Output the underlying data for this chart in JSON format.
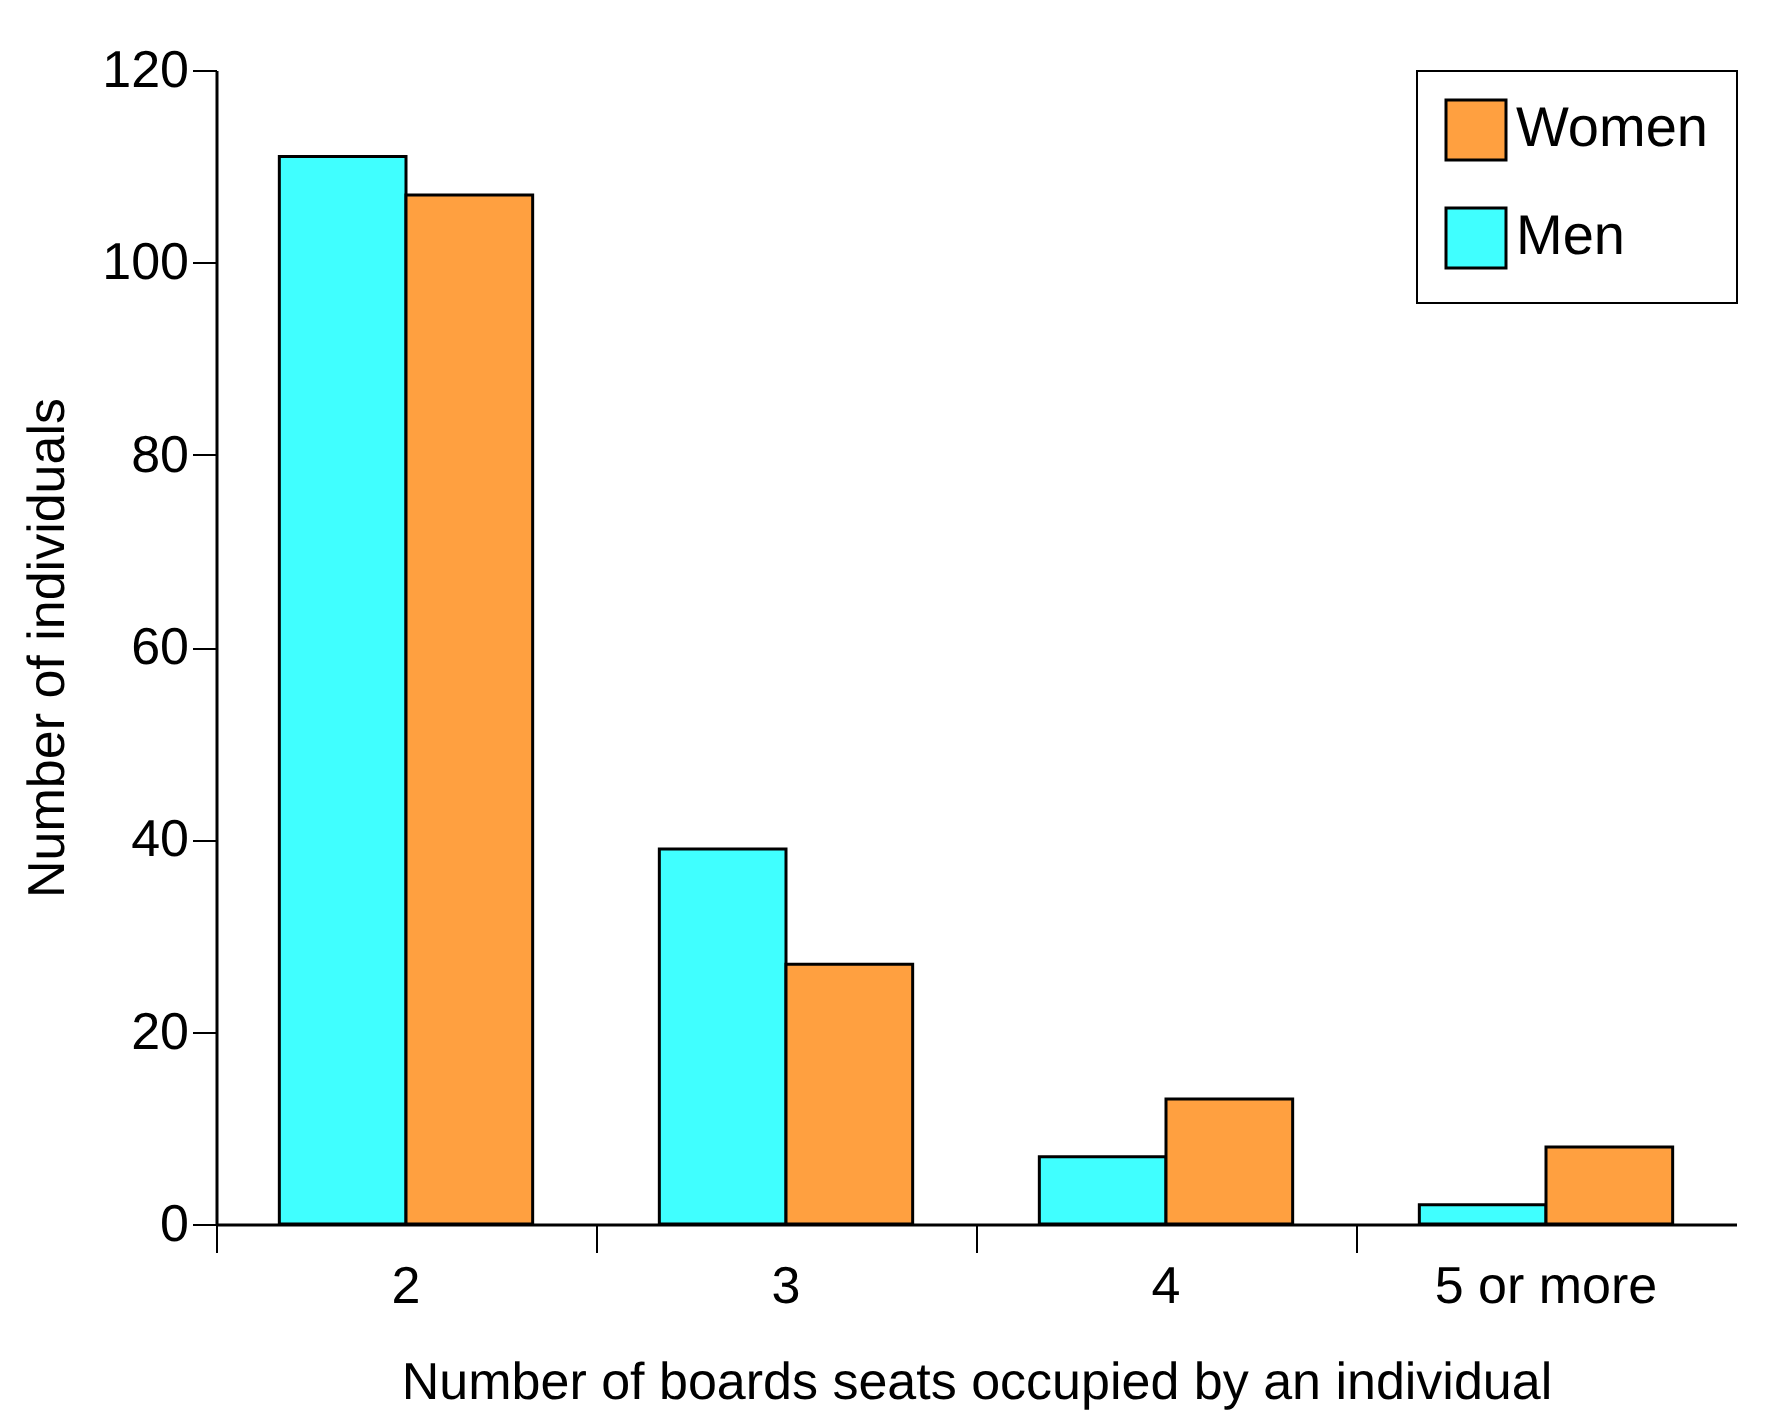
{
  "chart_data": {
    "type": "bar",
    "xlabel": "Number of boards seats occupied by an individual",
    "ylabel": "Number of individuals",
    "categories": [
      "2",
      "3",
      "4",
      "5 or more"
    ],
    "series": [
      {
        "name": "Men",
        "color": "#40ffff",
        "values": [
          111,
          39,
          7,
          2
        ]
      },
      {
        "name": "Women",
        "color": "#ffa040",
        "values": [
          107,
          27,
          13,
          8
        ]
      }
    ],
    "ylim": [
      0,
      120
    ],
    "yticks": [
      0,
      20,
      40,
      60,
      80,
      100,
      120
    ],
    "grid": false,
    "legend": "top right"
  }
}
